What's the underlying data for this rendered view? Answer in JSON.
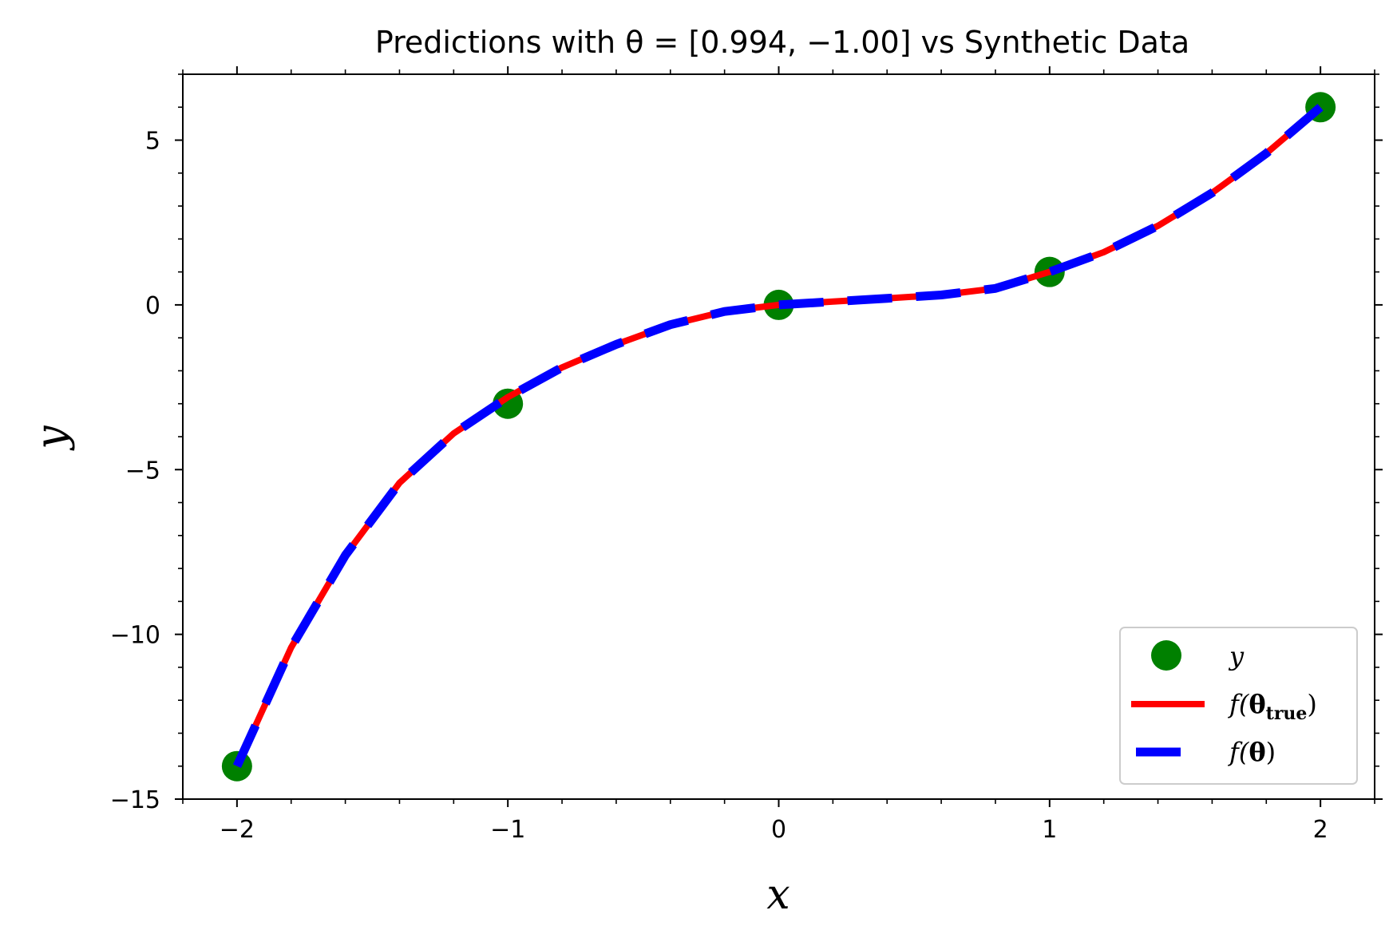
{
  "chart_data": {
    "type": "line",
    "title": "Predictions with θ = [0.994, −1.00] vs Synthetic Data",
    "xlabel": "x",
    "ylabel": "y",
    "xlim": [
      -2.2,
      2.2
    ],
    "ylim": [
      -15,
      7
    ],
    "xticks": [
      -2,
      -1,
      0,
      1,
      2
    ],
    "xtick_labels": [
      "−2",
      "−1",
      "0",
      "1",
      "2"
    ],
    "yticks": [
      -15,
      -10,
      -5,
      0,
      5
    ],
    "ytick_labels": [
      "−15",
      "−10",
      "−5",
      "0",
      "5"
    ],
    "x_minor_step": 0.2,
    "y_minor_step": 1,
    "legend_position": "lower right",
    "grid": false,
    "series": [
      {
        "name": "y",
        "kind": "scatter",
        "color": "#008000",
        "x": [
          -2,
          -1,
          0,
          1,
          2
        ],
        "y": [
          -14,
          -3,
          0,
          1,
          6
        ]
      },
      {
        "name": "f(θ_true)",
        "kind": "line",
        "style": "solid",
        "color": "#ff0000",
        "x": [
          -2,
          -1.8,
          -1.6,
          -1.4,
          -1.2,
          -1,
          -0.8,
          -0.6,
          -0.4,
          -0.2,
          0,
          0.2,
          0.4,
          0.6,
          0.8,
          1,
          1.2,
          1.4,
          1.6,
          1.8,
          2
        ],
        "y": [
          -14,
          -10.4,
          -7.6,
          -5.4,
          -3.9,
          -2.8,
          -1.9,
          -1.2,
          -0.6,
          -0.2,
          0,
          0.1,
          0.2,
          0.3,
          0.5,
          1,
          1.6,
          2.4,
          3.4,
          4.6,
          6
        ]
      },
      {
        "name": "f(θ)",
        "kind": "line",
        "style": "dashed",
        "color": "#0000ff",
        "x": [
          -2,
          -1.8,
          -1.6,
          -1.4,
          -1.2,
          -1,
          -0.8,
          -0.6,
          -0.4,
          -0.2,
          0,
          0.2,
          0.4,
          0.6,
          0.8,
          1,
          1.2,
          1.4,
          1.6,
          1.8,
          2
        ],
        "y": [
          -14,
          -10.4,
          -7.6,
          -5.4,
          -3.9,
          -2.8,
          -1.9,
          -1.2,
          -0.6,
          -0.2,
          0,
          0.1,
          0.2,
          0.3,
          0.5,
          1,
          1.6,
          2.4,
          3.4,
          4.6,
          6
        ]
      }
    ]
  },
  "legend": {
    "y_label": "y",
    "true_f": "f(",
    "true_theta": "θ",
    "true_sub": "true",
    "true_close": ")",
    "pred_f": "f(",
    "pred_theta": "θ",
    "pred_close": ")"
  }
}
